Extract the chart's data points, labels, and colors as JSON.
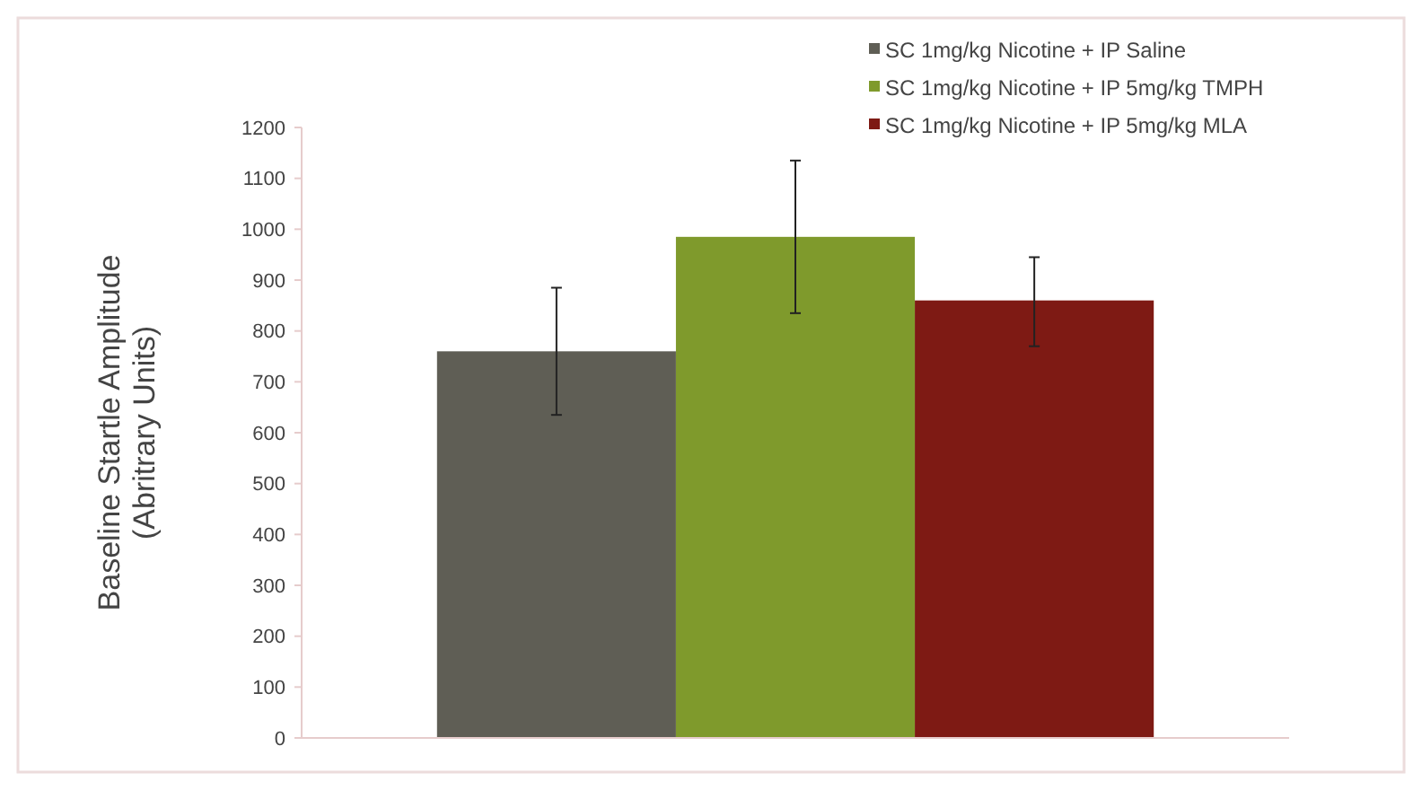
{
  "chart_data": {
    "type": "bar",
    "ylabel": "Baseline Startle Amplitude\n(Abritrary Units)",
    "categories": [
      null
    ],
    "series": [
      {
        "name": "SC 1mg/kg Nicotine + IP Saline",
        "color": "#5f5e55",
        "values": [
          760
        ],
        "errors": [
          [
            635,
            885
          ]
        ]
      },
      {
        "name": "SC 1mg/kg Nicotine + IP 5mg/kg TMPH",
        "color": "#7f9a2c",
        "values": [
          985
        ],
        "errors": [
          [
            835,
            1135
          ]
        ]
      },
      {
        "name": "SC 1mg/kg Nicotine + IP 5mg/kg MLA",
        "color": "#7e1a14",
        "values": [
          860
        ],
        "errors": [
          [
            770,
            945
          ]
        ]
      }
    ],
    "ylim": [
      0,
      1200
    ],
    "yticks": [
      0,
      100,
      200,
      300,
      400,
      500,
      600,
      700,
      800,
      900,
      1000,
      1100,
      1200
    ],
    "grid": false,
    "legend": "top right"
  }
}
